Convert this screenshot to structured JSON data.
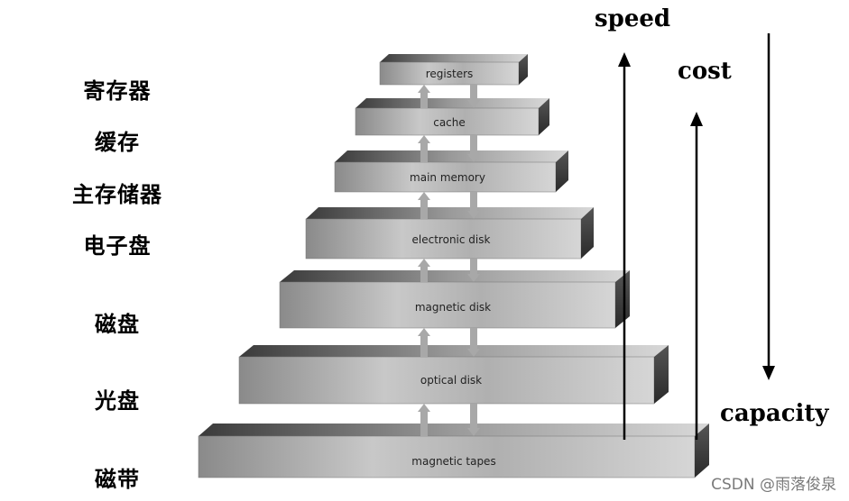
{
  "levels": [
    {
      "name": "registers",
      "cn": "寄存器"
    },
    {
      "name": "cache",
      "cn": "缓存"
    },
    {
      "name": "main memory",
      "cn": "主存储器"
    },
    {
      "name": "electronic disk",
      "cn": "电子盘"
    },
    {
      "name": "magnetic disk",
      "cn": "磁盘"
    },
    {
      "name": "optical disk",
      "cn": "光盘"
    },
    {
      "name": "magnetic tapes",
      "cn": "磁带"
    }
  ],
  "axes": {
    "speed": "speed",
    "cost": "cost",
    "capacity": "capacity"
  },
  "watermark": "CSDN @雨落俊泉"
}
